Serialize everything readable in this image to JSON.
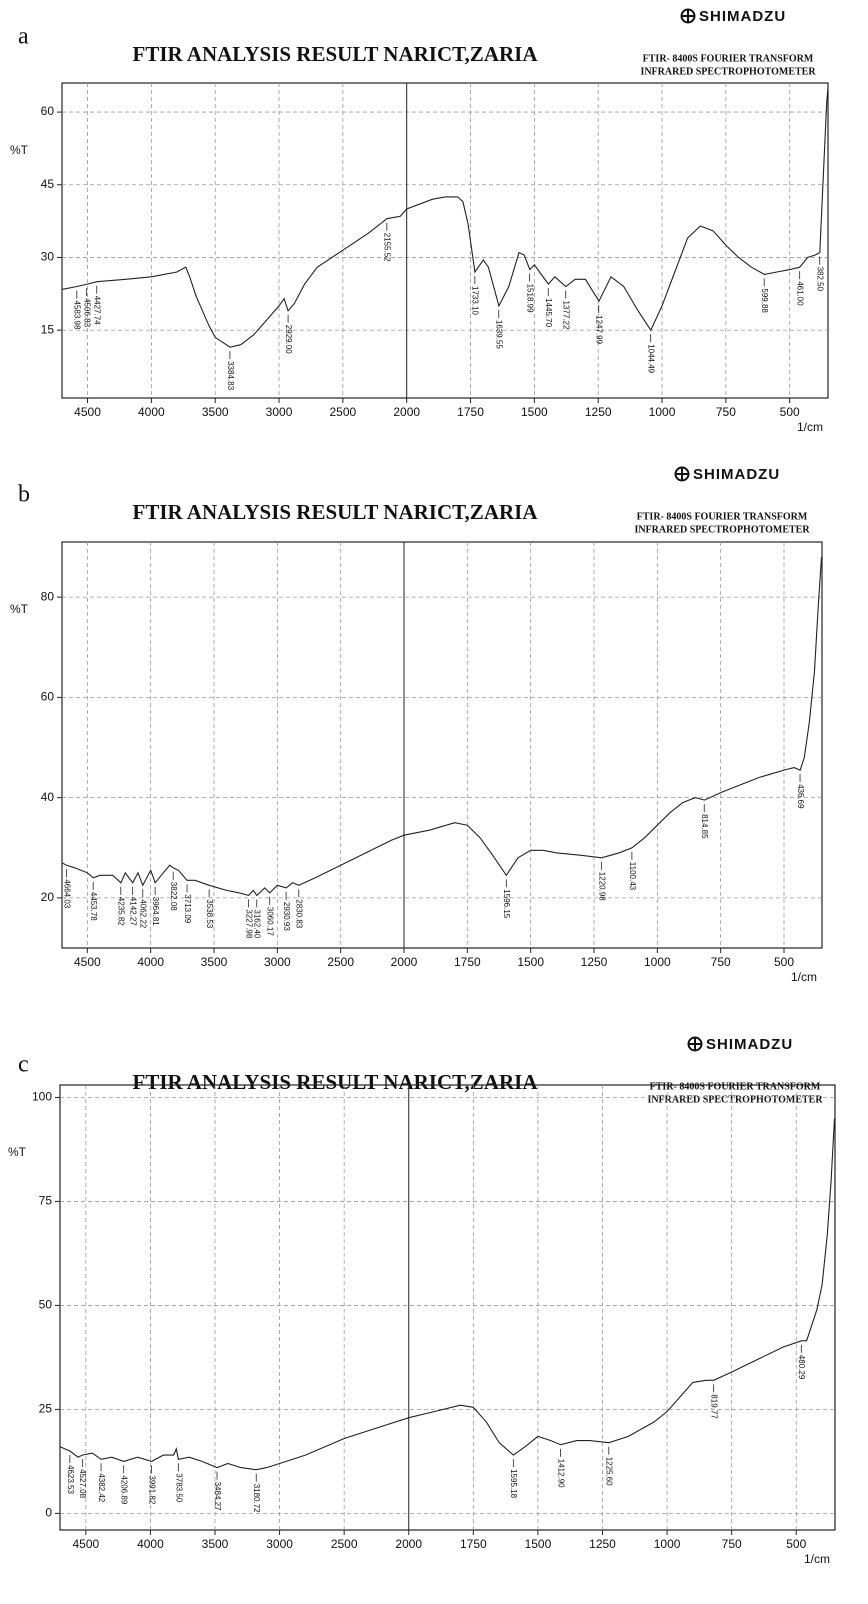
{
  "chart_data": [
    {
      "type": "line",
      "label": "a",
      "title": "FTIR ANALYSIS RESULT NARICT,ZARIA",
      "brand": "SHIMADZU",
      "instrument": [
        "FTIR- 8400S FOURIER TRANSFORM",
        "INFRARED SPECTROPHOTOMETER"
      ],
      "ylabel": "%T",
      "xlabel": "1/cm",
      "color": "#222222",
      "grid": true,
      "xlim": [
        4700,
        350
      ],
      "xscale": {
        "break": 2000,
        "ratio": 2
      },
      "xticks": [
        4500,
        4000,
        3500,
        3000,
        2500,
        2000,
        1750,
        1500,
        1250,
        1000,
        750,
        500
      ],
      "ylim": [
        1,
        66
      ],
      "yticks": [
        15,
        30,
        45,
        60
      ],
      "x": [
        4700,
        4583,
        4500,
        4427,
        4200,
        4000,
        3800,
        3730,
        3700,
        3650,
        3550,
        3500,
        3384,
        3300,
        3200,
        3100,
        3000,
        2960,
        2929,
        2880,
        2800,
        2700,
        2500,
        2300,
        2155,
        2050,
        2000,
        1900,
        1850,
        1800,
        1780,
        1760,
        1733,
        1700,
        1680,
        1639,
        1600,
        1560,
        1540,
        1518,
        1500,
        1480,
        1445,
        1420,
        1377,
        1340,
        1300,
        1247,
        1200,
        1150,
        1100,
        1044,
        1000,
        950,
        900,
        850,
        800,
        750,
        700,
        650,
        599,
        550,
        500,
        461,
        430,
        400,
        382,
        370,
        355,
        350
      ],
      "values": [
        23.4,
        24,
        24.5,
        25,
        25.5,
        26,
        27,
        28,
        26,
        22,
        16,
        13.5,
        11.5,
        12,
        14,
        17,
        20,
        21.5,
        19,
        20.5,
        24.5,
        28,
        31.5,
        35,
        38,
        38.5,
        40,
        42,
        42.5,
        42.5,
        41.5,
        37,
        27,
        29.5,
        28,
        20,
        24,
        31,
        30.5,
        27.5,
        28.5,
        27,
        24.5,
        26,
        24,
        25.5,
        25.5,
        21,
        26,
        24,
        19.5,
        15,
        20,
        27,
        34,
        36.5,
        35.5,
        32.5,
        30,
        28,
        26.5,
        27,
        27.5,
        28,
        30,
        30.5,
        31,
        45,
        62,
        65
      ],
      "peaks": {
        "x": [
          4583.98,
          4506.83,
          4427.74,
          3384.83,
          2929.0,
          2155.52,
          1733.1,
          1639.55,
          1518.99,
          1445.7,
          1377.22,
          1247.99,
          1044.49,
          599.88,
          461.0,
          382.5
        ],
        "y": [
          24,
          24.5,
          25,
          11.5,
          19,
          38,
          27,
          20,
          27.5,
          24.5,
          24,
          21,
          15,
          26.5,
          28,
          31
        ],
        "labels": [
          "4583.98",
          "4506.83",
          "4427.74",
          "3384.83",
          "2929.00",
          "2155.52",
          "1733.10",
          "1639.55",
          "1518.99",
          "1445.70",
          "1377.22",
          "1247.99",
          "1044.49",
          "599.88",
          "461.00",
          "382.50"
        ]
      }
    },
    {
      "type": "line",
      "label": "b",
      "title": "FTIR ANALYSIS RESULT NARICT,ZARIA",
      "brand": "SHIMADZU",
      "instrument": [
        "FTIR- 8400S FOURIER TRANSFORM",
        "INFRARED SPECTROPHOTOMETER"
      ],
      "ylabel": "%T",
      "xlabel": "1/cm",
      "color": "#222222",
      "grid": true,
      "xlim": [
        4700,
        350
      ],
      "xscale": {
        "break": 2000,
        "ratio": 2
      },
      "xticks": [
        4500,
        4000,
        3500,
        3000,
        2500,
        2000,
        1750,
        1500,
        1250,
        1000,
        750,
        500
      ],
      "ylim": [
        10,
        91
      ],
      "yticks": [
        20,
        40,
        60,
        80
      ],
      "x": [
        4700,
        4664,
        4600,
        4500,
        4453,
        4400,
        4300,
        4235,
        4200,
        4142,
        4100,
        4062,
        4000,
        3964,
        3900,
        3850,
        3822,
        3780,
        3713,
        3650,
        3538,
        3400,
        3300,
        3227,
        3190,
        3162,
        3100,
        3060,
        3000,
        2930,
        2880,
        2830,
        2700,
        2500,
        2300,
        2100,
        2000,
        1900,
        1800,
        1750,
        1700,
        1650,
        1596,
        1550,
        1500,
        1450,
        1400,
        1300,
        1220,
        1150,
        1100,
        1050,
        1000,
        950,
        900,
        850,
        814,
        750,
        700,
        600,
        500,
        460,
        436,
        420,
        400,
        380,
        365,
        352
      ],
      "values": [
        27,
        26.5,
        26,
        25,
        24,
        24.5,
        24.5,
        23,
        25,
        23,
        25,
        22.5,
        25.5,
        23,
        25,
        26.5,
        26,
        25.5,
        23.5,
        23.5,
        22.5,
        21.5,
        21,
        20.5,
        21.5,
        20.5,
        22,
        21,
        22.5,
        22,
        23,
        22.5,
        24,
        26.5,
        29,
        31.5,
        32.5,
        33.5,
        35,
        34.5,
        32,
        28.5,
        24.5,
        28,
        29.5,
        29.5,
        29,
        28.5,
        28,
        29,
        30,
        32,
        34.5,
        37,
        39,
        40,
        39.5,
        41,
        42,
        44,
        45.5,
        46,
        45.5,
        48,
        55,
        65,
        78,
        88
      ],
      "peaks": {
        "x": [
          4664.03,
          4453.78,
          4235.82,
          4142.27,
          4062.22,
          3964.81,
          3822.08,
          3713.09,
          3538.53,
          3227.98,
          3162.4,
          3060.17,
          2930.93,
          2830.83,
          1596.15,
          1220.98,
          1100.43,
          814.85,
          436.69
        ],
        "y": [
          26.5,
          24,
          23,
          23,
          22.5,
          23,
          26,
          23.5,
          22.5,
          20.5,
          20.5,
          21,
          22,
          22.5,
          24.5,
          28,
          30,
          39.5,
          45.5
        ],
        "labels": [
          "4664.03",
          "4453.78",
          "4235.82",
          "4142.27",
          "4062.22",
          "3964.81",
          "3822.08",
          "3713.09",
          "3538.53",
          "3227.98",
          "3162.40",
          "3060.17",
          "2930.93",
          "2830.83",
          "1596.15",
          "1220.98",
          "1100.43",
          "814.85",
          "436.69"
        ]
      }
    },
    {
      "type": "line",
      "label": "c",
      "title": "FTIR ANALYSIS RESULT NARICT,ZARIA",
      "brand": "SHIMADZU",
      "instrument": [
        "FTIR- 8400S FOURIER TRANSFORM",
        "INFRARED SPECTROPHOTOMETER"
      ],
      "ylabel": "%T",
      "xlabel": "1/cm",
      "color": "#222222",
      "grid": true,
      "xlim": [
        4700,
        350
      ],
      "xscale": {
        "break": 2000,
        "ratio": 2
      },
      "xticks": [
        4500,
        4000,
        3500,
        3000,
        2500,
        2000,
        1750,
        1500,
        1250,
        1000,
        750,
        500
      ],
      "ylim": [
        -4,
        103
      ],
      "yticks": [
        0,
        25,
        50,
        75,
        100
      ],
      "x": [
        4700,
        4623,
        4560,
        4527,
        4450,
        4382,
        4300,
        4206,
        4100,
        3991,
        3900,
        3820,
        3800,
        3783,
        3700,
        3600,
        3484,
        3400,
        3300,
        3180,
        3100,
        3000,
        2800,
        2500,
        2200,
        2000,
        1900,
        1800,
        1750,
        1700,
        1650,
        1595,
        1550,
        1500,
        1450,
        1412,
        1350,
        1300,
        1225,
        1150,
        1050,
        1000,
        950,
        900,
        850,
        819,
        750,
        650,
        550,
        480,
        460,
        420,
        400,
        380,
        365,
        352
      ],
      "values": [
        16,
        15,
        13.5,
        14,
        14.5,
        13,
        13.5,
        12.5,
        13.5,
        12.5,
        14,
        14,
        15.5,
        13,
        13.5,
        12.5,
        11,
        12,
        11,
        10.5,
        11,
        12,
        14,
        18,
        21,
        23,
        24.5,
        26,
        25.5,
        22,
        17,
        14,
        16,
        18.5,
        17.5,
        16.5,
        17.5,
        17.5,
        17,
        18.5,
        22,
        24.5,
        28,
        31.5,
        32,
        32,
        34,
        37,
        40,
        41.5,
        41.5,
        49,
        55,
        67,
        80,
        95
      ],
      "peaks": {
        "x": [
          4623.53,
          4527.08,
          4382.42,
          4206.89,
          3991.82,
          3783.5,
          3484.27,
          3180.72,
          1595.18,
          1412.9,
          1225.6,
          819.77,
          480.29
        ],
        "y": [
          15,
          14,
          13,
          12.5,
          12.5,
          13,
          11,
          10.5,
          14,
          16.5,
          17,
          32,
          41.5
        ],
        "labels": [
          "4623.53",
          "4527.08",
          "4382.42",
          "4206.89",
          "3991.82",
          "3783.50",
          "3484.27",
          "3180.72",
          "1595.18",
          "1412.90",
          "1225.60",
          "819.77",
          "480.29"
        ]
      }
    }
  ]
}
